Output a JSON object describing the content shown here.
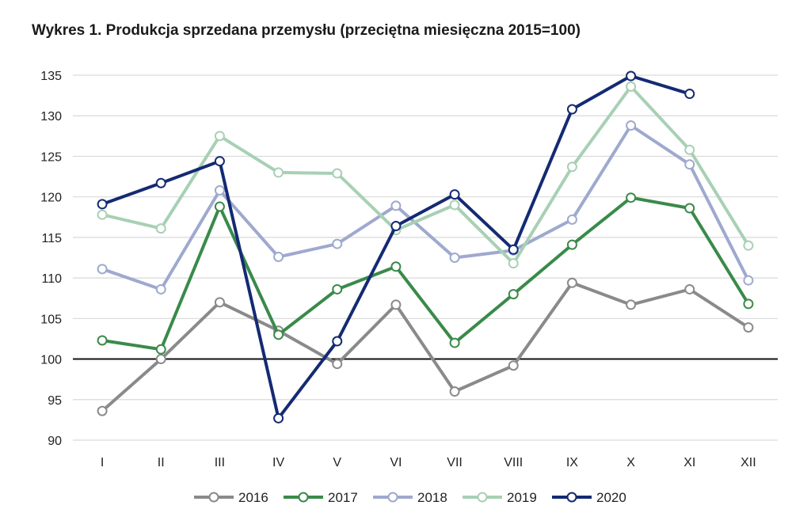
{
  "chart_data": {
    "type": "line",
    "title": "Wykres 1. Produkcja sprzedana przemysłu (przeciętna miesięczna 2015=100)",
    "xlabel": "",
    "ylabel": "",
    "categories": [
      "I",
      "II",
      "III",
      "IV",
      "V",
      "VI",
      "VII",
      "VIII",
      "IX",
      "X",
      "XI",
      "XII"
    ],
    "ylim": [
      90,
      135
    ],
    "yticks": [
      90,
      95,
      100,
      105,
      110,
      115,
      120,
      125,
      130,
      135
    ],
    "grid": true,
    "reference_line": 100,
    "legend_position": "bottom",
    "series": [
      {
        "name": "2016",
        "color": "#8a8a8a",
        "values": [
          93.6,
          100.0,
          107.0,
          103.5,
          99.4,
          106.7,
          96.0,
          99.2,
          109.4,
          106.7,
          108.6,
          103.9
        ]
      },
      {
        "name": "2017",
        "color": "#3a8a4a",
        "values": [
          102.3,
          101.2,
          118.8,
          103.0,
          108.6,
          111.4,
          102.0,
          108.0,
          114.1,
          119.9,
          118.6,
          106.8
        ]
      },
      {
        "name": "2018",
        "color": "#9ea9cf",
        "values": [
          111.1,
          108.6,
          120.8,
          112.6,
          114.2,
          118.9,
          112.5,
          113.4,
          117.2,
          128.8,
          124.0,
          109.7
        ]
      },
      {
        "name": "2019",
        "color": "#a8d0b4",
        "values": [
          117.8,
          116.1,
          127.5,
          123.0,
          122.9,
          115.9,
          119.0,
          111.8,
          123.7,
          133.6,
          125.8,
          114.0
        ]
      },
      {
        "name": "2020",
        "color": "#142a73",
        "values": [
          119.1,
          121.7,
          124.4,
          92.7,
          102.2,
          116.4,
          120.3,
          113.5,
          130.8,
          134.9,
          132.7,
          null
        ]
      }
    ]
  }
}
